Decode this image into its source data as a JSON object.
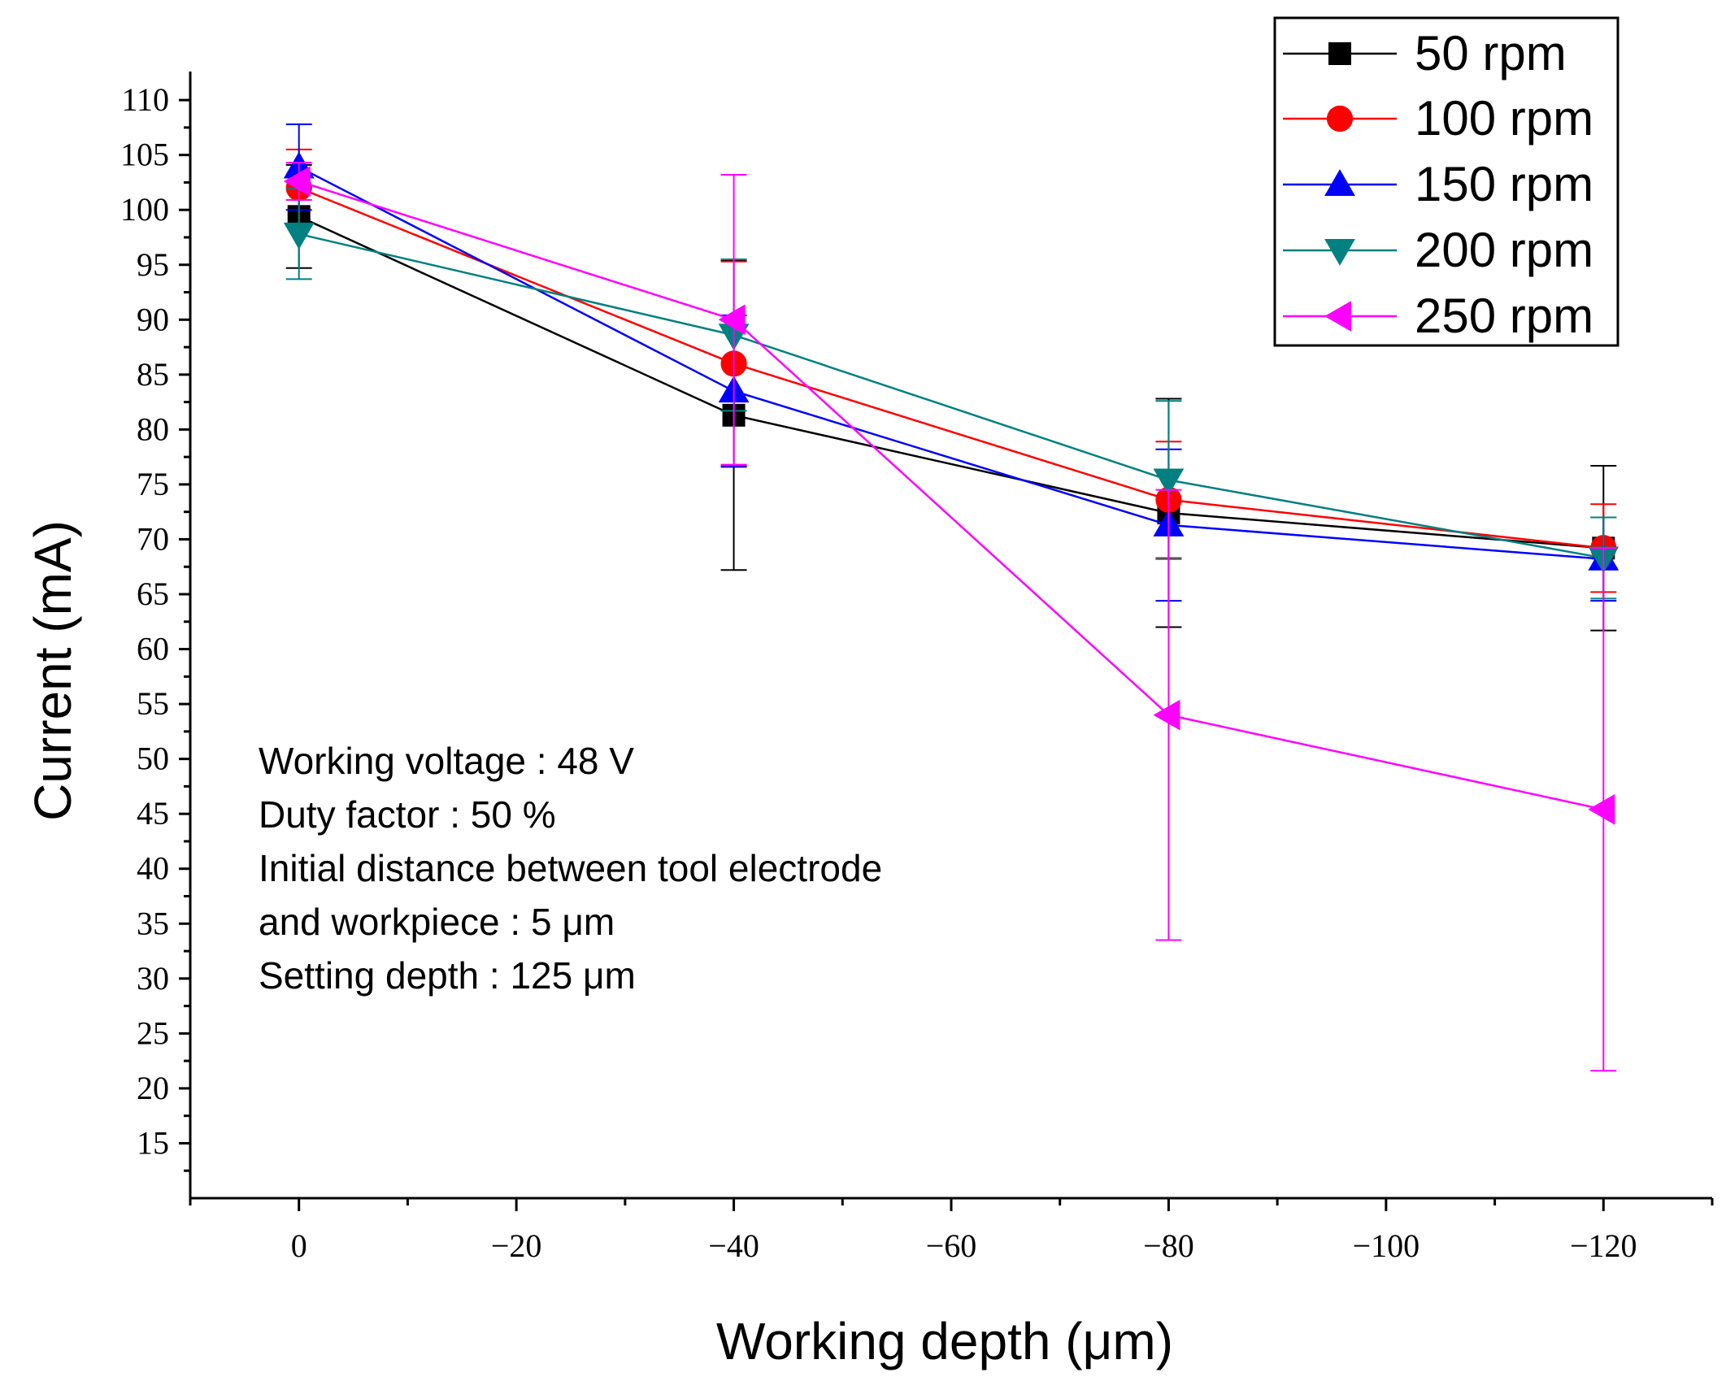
{
  "chart_data": {
    "type": "line",
    "title": "",
    "xlabel": "Working depth (μm)",
    "ylabel": "Current (mA)",
    "xlim": [
      10,
      -130
    ],
    "ylim": [
      10,
      112.6
    ],
    "x": [
      0,
      -40,
      -80,
      -120
    ],
    "x_ticks": [
      0,
      -20,
      -40,
      -60,
      -80,
      -100,
      -120
    ],
    "x_tick_labels": [
      "0",
      "−20",
      "−40",
      "−60",
      "−80",
      "−100",
      "−120"
    ],
    "y_ticks": [
      15,
      20,
      25,
      30,
      35,
      40,
      45,
      50,
      55,
      60,
      65,
      70,
      75,
      80,
      85,
      90,
      95,
      100,
      105,
      110
    ],
    "grid": false,
    "legend_position": "top-right",
    "series": [
      {
        "name": "50 rpm",
        "color": "#000000",
        "marker": "square",
        "values": [
          99.4,
          81.3,
          72.4,
          69.2
        ],
        "errors": [
          4.7,
          14.1,
          10.4,
          7.5
        ]
      },
      {
        "name": "100 rpm",
        "color": "#ff0000",
        "marker": "circle",
        "values": [
          102.0,
          86.0,
          73.6,
          69.2
        ],
        "errors": [
          3.5,
          9.3,
          5.3,
          4.0
        ]
      },
      {
        "name": "150 rpm",
        "color": "#0000ff",
        "marker": "triangle-up",
        "values": [
          103.9,
          83.5,
          71.3,
          68.2
        ],
        "errors": [
          3.9,
          6.9,
          6.9,
          3.8
        ]
      },
      {
        "name": "200 rpm",
        "color": "#008080",
        "marker": "triangle-down",
        "values": [
          97.8,
          88.6,
          75.4,
          68.3
        ],
        "errors": [
          4.1,
          6.9,
          7.2,
          3.7
        ]
      },
      {
        "name": "250 rpm",
        "color": "#ff00ff",
        "marker": "triangle-left",
        "values": [
          102.6,
          90.0,
          54.0,
          45.4
        ],
        "errors": [
          1.7,
          13.2,
          20.5,
          23.8
        ]
      }
    ],
    "annotations": [
      "Working voltage : 48 V",
      "Duty factor : 50 %",
      "Initial distance between tool electrode",
      "and workpiece : 5 μm",
      "Setting depth : 125 μm"
    ]
  }
}
